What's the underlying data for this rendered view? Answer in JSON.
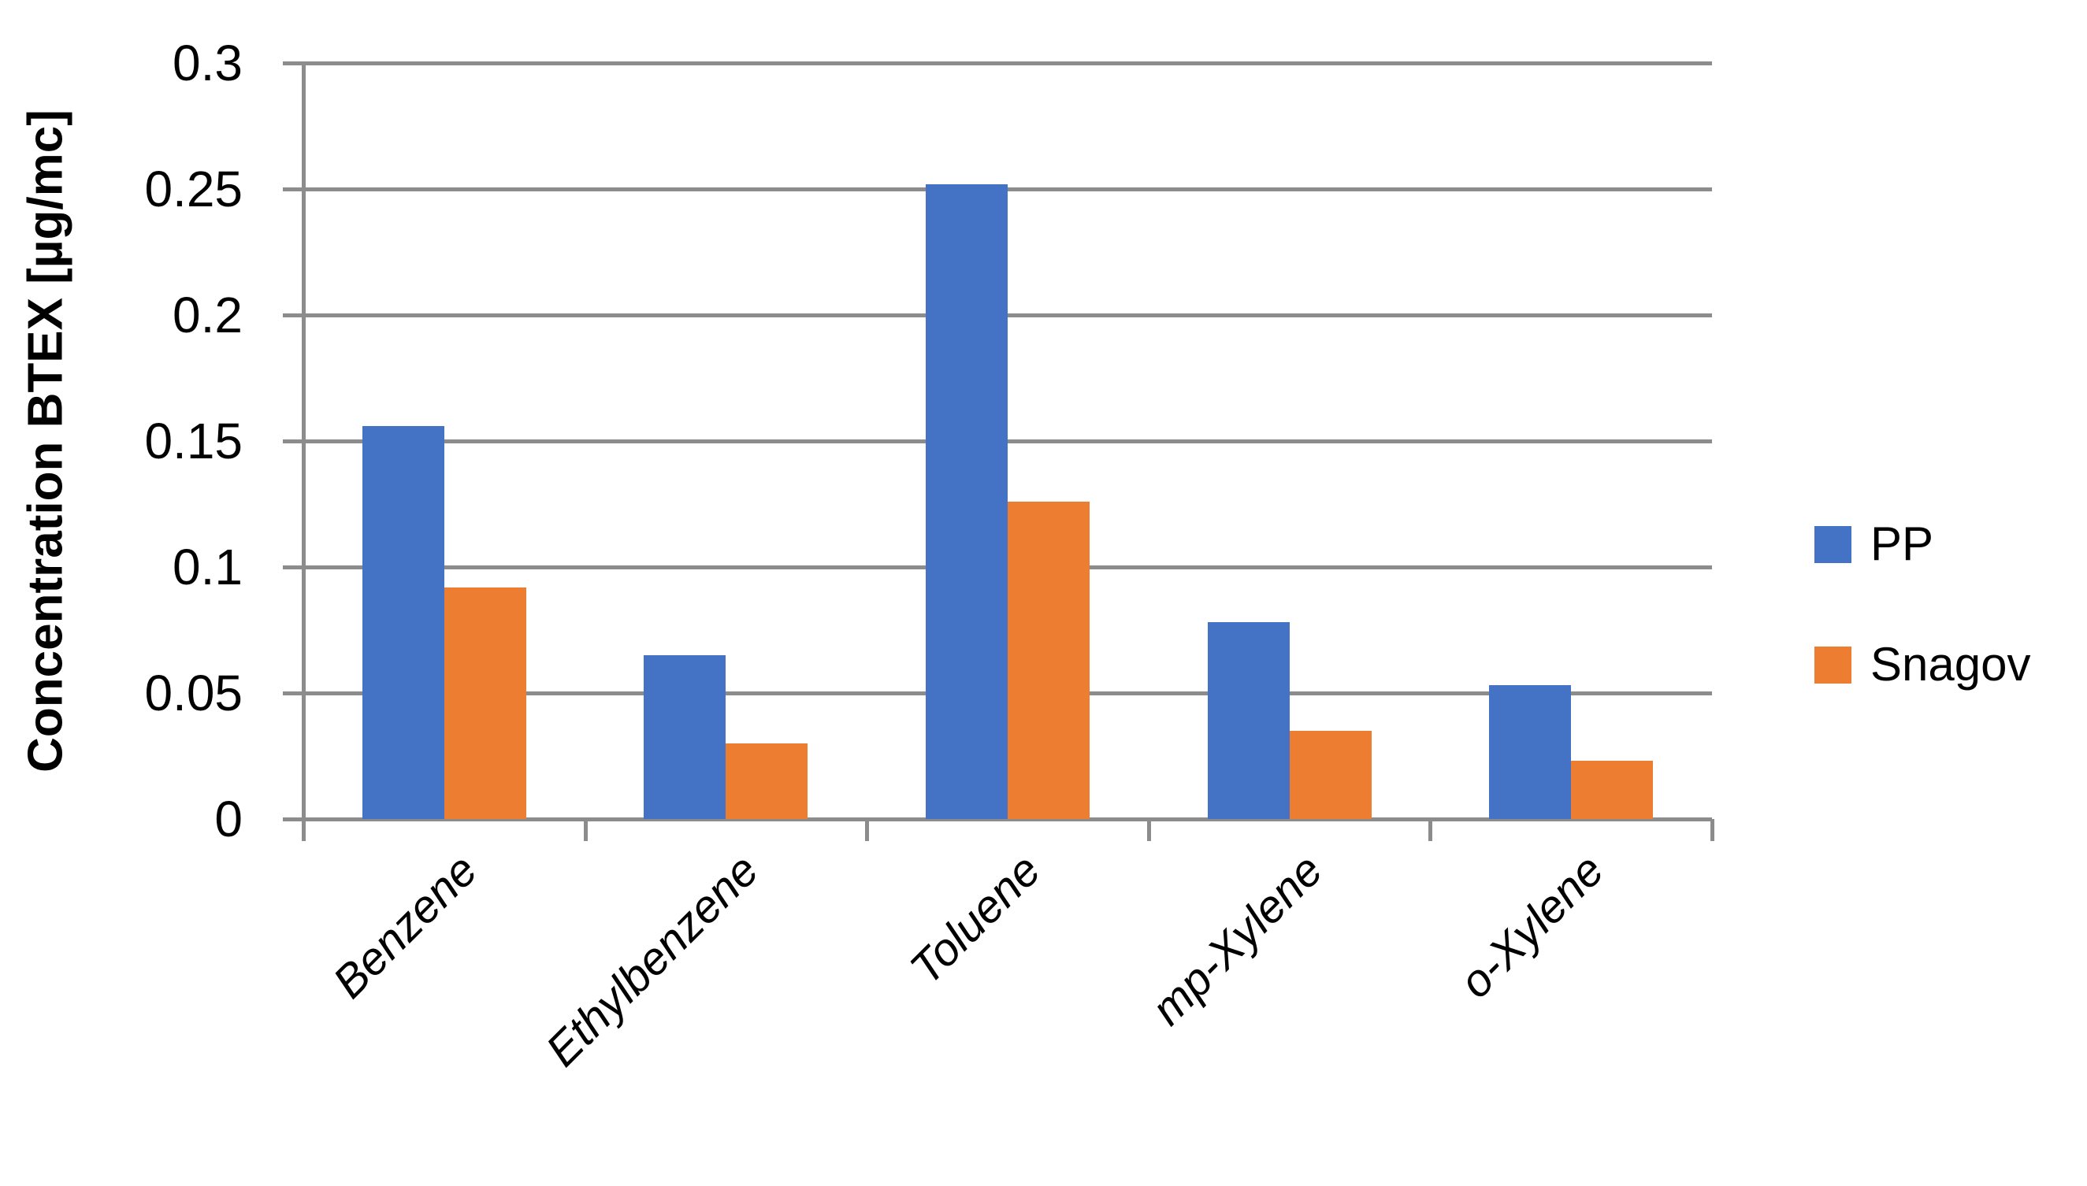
{
  "chart_data": {
    "type": "bar",
    "title": "",
    "ylabel": "Concentration BTEX [µg/mc]",
    "xlabel": "",
    "categories": [
      "Benzene",
      "Ethylbenzene",
      "Toluene",
      "mp-Xylene",
      "o-Xylene"
    ],
    "series": [
      {
        "name": "PP",
        "color": "#4472C4",
        "values": [
          0.156,
          0.065,
          0.252,
          0.078,
          0.053
        ]
      },
      {
        "name": "Snagov",
        "color": "#ED7D31",
        "values": [
          0.092,
          0.03,
          0.126,
          0.035,
          0.023
        ]
      }
    ],
    "ylim": [
      0,
      0.3
    ],
    "yticks": [
      {
        "value": 0,
        "label": "0"
      },
      {
        "value": 0.05,
        "label": "0.05"
      },
      {
        "value": 0.1,
        "label": "0.1"
      },
      {
        "value": 0.15,
        "label": "0.15"
      },
      {
        "value": 0.2,
        "label": "0.2"
      },
      {
        "value": 0.25,
        "label": "0.25"
      },
      {
        "value": 0.3,
        "label": "0.3"
      }
    ],
    "grid": true,
    "legend_position": "right"
  },
  "colors": {
    "grid": "#8C8C8C",
    "axis": "#8C8C8C",
    "text": "#000000",
    "background": "#FFFFFF"
  }
}
